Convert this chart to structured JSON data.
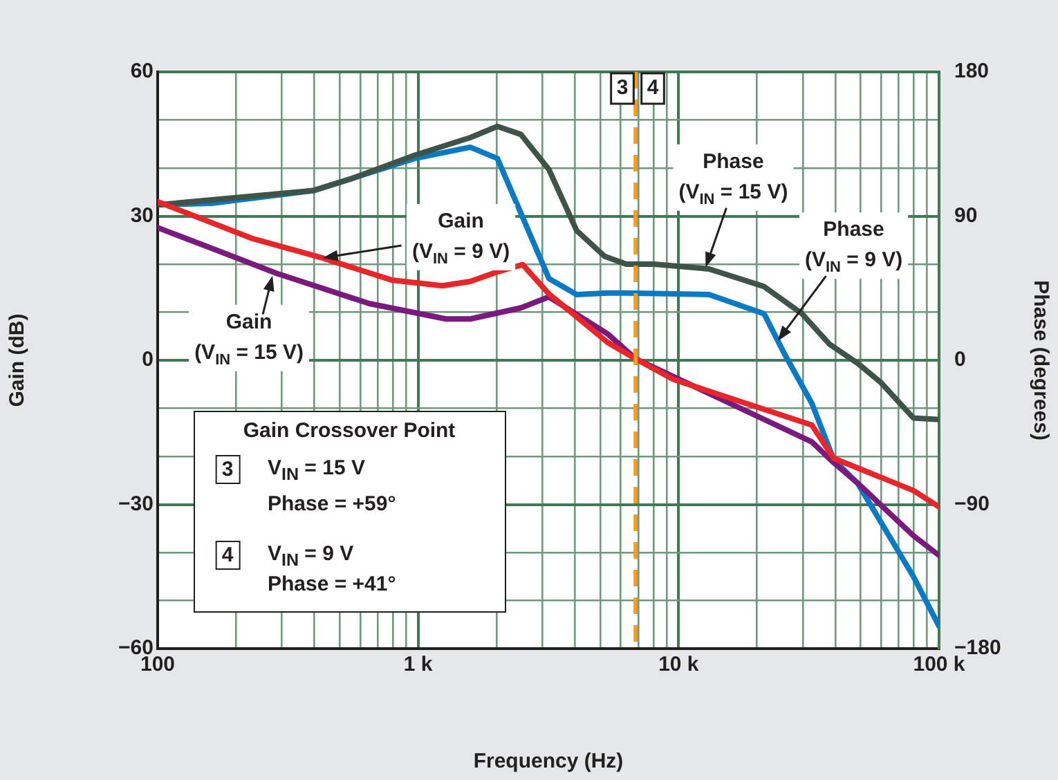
{
  "chart_data": {
    "type": "line",
    "xlabel": "Frequency (Hz)",
    "ylabel": "Gain (dB)",
    "y2label": "Phase (degrees)",
    "log": "x",
    "grid": true,
    "legend": false,
    "xlim": [
      100,
      100000
    ],
    "xticks": [
      100,
      {
        "value": 200,
        "label": null
      },
      {
        "value": 300,
        "label": null
      },
      {
        "value": 400,
        "label": null
      },
      {
        "value": 500,
        "label": null
      },
      {
        "value": 600,
        "label": null
      },
      {
        "value": 700,
        "label": null
      },
      {
        "value": 800,
        "label": null
      },
      {
        "value": 900,
        "label": null
      },
      {
        "value": 1000,
        "label": "1 k"
      },
      {
        "value": 2000,
        "label": null
      },
      {
        "value": 3000,
        "label": null
      },
      {
        "value": 4000,
        "label": null
      },
      {
        "value": 5000,
        "label": null
      },
      {
        "value": 6000,
        "label": null
      },
      {
        "value": 7000,
        "label": null
      },
      {
        "value": 8000,
        "label": null
      },
      {
        "value": 9000,
        "label": null
      },
      {
        "value": 10000,
        "label": "10 k"
      },
      {
        "value": 20000,
        "label": null
      },
      {
        "value": 30000,
        "label": null
      },
      {
        "value": 40000,
        "label": null
      },
      {
        "value": 50000,
        "label": null
      },
      {
        "value": 60000,
        "label": null
      },
      {
        "value": 70000,
        "label": null
      },
      {
        "value": 80000,
        "label": null
      },
      {
        "value": 90000,
        "label": null
      },
      {
        "value": 100000,
        "label": "100 k"
      }
    ],
    "ylim": [
      -60,
      60
    ],
    "yticks": [
      {
        "value": -60,
        "label": "−60"
      },
      {
        "value": -50,
        "label": null
      },
      {
        "value": -40,
        "label": null
      },
      {
        "value": -30,
        "label": "−30"
      },
      {
        "value": -20,
        "label": null
      },
      {
        "value": -10,
        "label": null
      },
      0,
      {
        "value": 10,
        "label": null
      },
      {
        "value": 20,
        "label": null
      },
      30,
      {
        "value": 40,
        "label": null
      },
      {
        "value": 50,
        "label": null
      },
      60
    ],
    "y2lim": [
      -180,
      180
    ],
    "y2ticks": [
      {
        "value": -180,
        "label": "−180"
      },
      {
        "value": -90,
        "label": "−90"
      },
      0,
      90,
      180
    ],
    "series": [
      {
        "name": null,
        "color": "#e8262a",
        "x": [
          100,
          232,
          428,
          790,
          1240,
          1585,
          2015,
          2520,
          3180,
          5340,
          6840,
          9560,
          32500,
          39400,
          79700,
          100000
        ],
        "values": [
          33,
          25.3,
          21.3,
          16.7,
          15.5,
          16.4,
          18.4,
          19.9,
          13.8,
          3.7,
          0.3,
          -4,
          -13.5,
          -20.4,
          -27.1,
          -30.5
        ]
      },
      {
        "name": null,
        "color": "#7b1a7e",
        "x": [
          100,
          161,
          286,
          649,
          1280,
          1585,
          2480,
          3180,
          5340,
          6840,
          32500,
          39400,
          48800,
          79700,
          100000
        ],
        "values": [
          27.6,
          23.3,
          18.1,
          11.8,
          8.6,
          8.6,
          10.9,
          13.2,
          5.5,
          0.3,
          -17,
          -21.3,
          -25.6,
          -36.5,
          -40.6
        ]
      },
      {
        "name": null,
        "color": "#3e5448",
        "axis": "y2",
        "x": [
          100,
          398,
          547,
          970,
          1585,
          2015,
          2480,
          3180,
          4060,
          5190,
          6290,
          8050,
          13100,
          21300,
          29800,
          38000,
          48800,
          59900,
          79700,
          100000
        ],
        "values": [
          97,
          106,
          113,
          128,
          139,
          146,
          141,
          119,
          81,
          65,
          60,
          60,
          57,
          46,
          29,
          10,
          -2,
          -14,
          -36,
          -37
        ]
      },
      {
        "name": null,
        "color": "#0a7ac4",
        "axis": "y2",
        "x": [
          100,
          161,
          398,
          970,
          1585,
          2015,
          3180,
          4060,
          5340,
          6290,
          13100,
          21300,
          25500,
          32500,
          39400,
          48800,
          79700,
          100000
        ],
        "values": [
          97,
          98,
          106,
          126,
          133,
          126,
          51,
          41,
          42,
          42,
          41,
          29,
          4,
          -27,
          -62,
          -77,
          -135,
          -166
        ]
      }
    ],
    "ref_lines": [
      {
        "axis": "x",
        "value": 6840,
        "label": null,
        "color": "#f59a23",
        "line_style": "dashed"
      }
    ],
    "annotations": [
      {
        "text": "Gain\n(V$_{IN}$ = 9 V)",
        "x": 430,
        "y": 21.3
      },
      {
        "text": "Gain\n(V$_{IN}$ = 15 V)",
        "x": 276,
        "y": 17.6
      },
      {
        "text": "Phase\n(V$_{IN}$ = 15 V)",
        "x": 12700,
        "y": 19.3
      },
      {
        "text": "Phase\n(V$_{IN}$ = 9 V)",
        "x": 24000,
        "y": 4
      },
      "3",
      "4",
      "Gain Crossover Point",
      "3",
      "V$_{IN}$ = 15 V",
      "Phase = +59°",
      "4",
      "V$_{IN}$ = 9 V",
      "Phase = +41°"
    ]
  }
}
